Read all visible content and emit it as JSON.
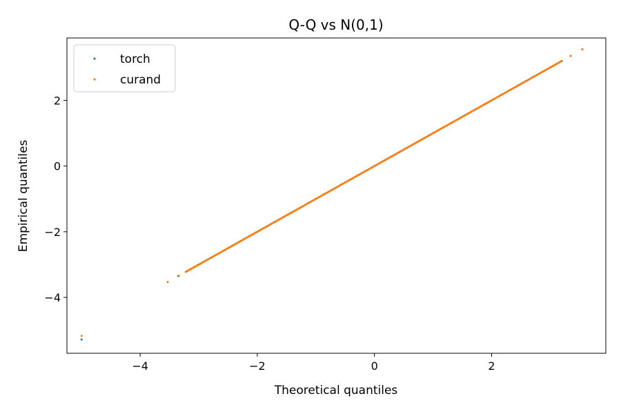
{
  "chart_data": {
    "type": "scatter",
    "title": "Q-Q vs N(0,1)",
    "xlabel": "Theoretical quantiles",
    "ylabel": "Empirical quantiles",
    "xlim": [
      -5.25,
      3.95
    ],
    "ylim": [
      -5.7,
      3.9
    ],
    "xticks": [
      -4,
      -2,
      0,
      2
    ],
    "yticks": [
      -4,
      -2,
      0,
      2
    ],
    "xtick_labels": [
      "−4",
      "−2",
      "0",
      "2"
    ],
    "ytick_labels": [
      "−4",
      "−2",
      "0",
      "2"
    ],
    "grid": false,
    "legend_position": "top-left",
    "series": [
      {
        "name": "torch",
        "color": "#1f77b4",
        "outliers": [
          [
            -5.0,
            -5.28
          ]
        ],
        "line_range": [
          -3.2,
          3.2
        ],
        "sparse_tail_points": [
          [
            -3.53,
            -3.53
          ],
          [
            -3.35,
            -3.35
          ],
          [
            -3.2,
            -3.2
          ],
          [
            3.2,
            3.2
          ],
          [
            3.35,
            3.35
          ],
          [
            3.55,
            3.55
          ]
        ]
      },
      {
        "name": "curand",
        "color": "#ff7f0e",
        "outliers": [
          [
            -5.0,
            -5.17
          ]
        ],
        "line_range": [
          -3.2,
          3.2
        ],
        "sparse_tail_points": [
          [
            -3.53,
            -3.53
          ],
          [
            -3.34,
            -3.34
          ],
          [
            -3.22,
            -3.22
          ],
          [
            -3.14,
            -3.14
          ],
          [
            -3.07,
            -3.07
          ],
          [
            -3.02,
            -3.02
          ],
          [
            3.0,
            3.0
          ],
          [
            3.05,
            3.05
          ],
          [
            3.13,
            3.13
          ],
          [
            3.2,
            3.2
          ],
          [
            3.35,
            3.35
          ],
          [
            3.55,
            3.55
          ]
        ]
      }
    ]
  }
}
